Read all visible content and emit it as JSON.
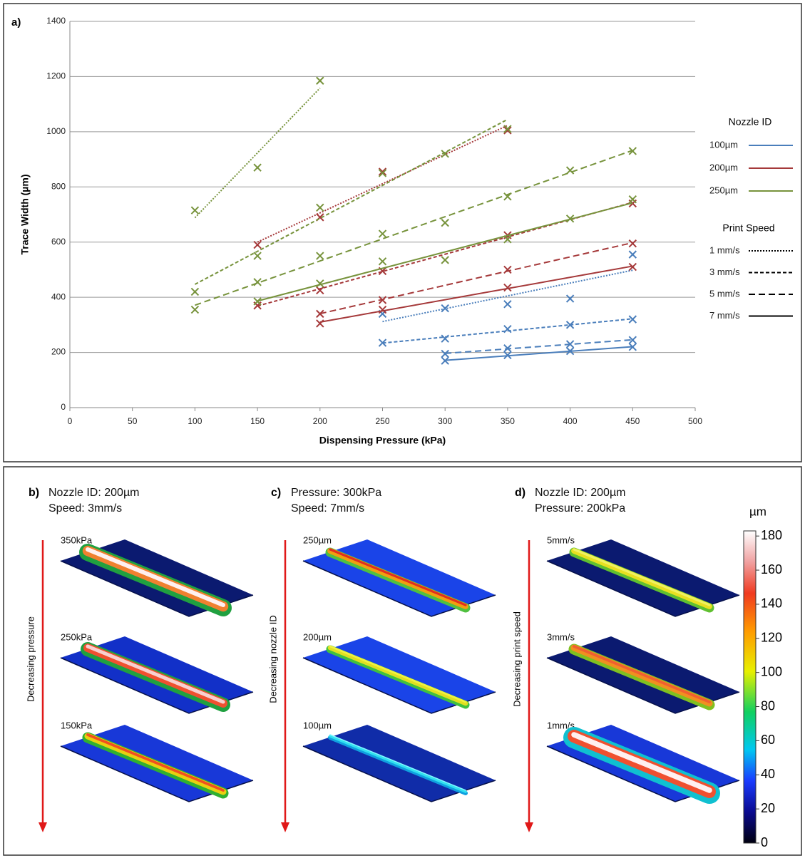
{
  "chart_data": {
    "type": "scatter",
    "panel_label": "a)",
    "x_label": "Dispensing Pressure (kPa)",
    "y_label": "Trace Width (µm)",
    "xlim": [
      0,
      500
    ],
    "xticks": [
      0,
      50,
      100,
      150,
      200,
      250,
      300,
      350,
      400,
      450,
      500
    ],
    "ylim": [
      0,
      1400
    ],
    "yticks": [
      0,
      200,
      400,
      600,
      800,
      1000,
      1200,
      1400
    ],
    "grid": true,
    "nozzle_legend_title": "Nozzle ID",
    "speed_legend_title": "Print Speed",
    "speeds": [
      {
        "name": "1 mm/s",
        "dash": "2,2"
      },
      {
        "name": "3 mm/s",
        "dash": "5,3"
      },
      {
        "name": "5 mm/s",
        "dash": "9,5"
      },
      {
        "name": "7 mm/s",
        "dash": "none"
      }
    ],
    "series": [
      {
        "name": "100µm",
        "color": "#4a7ebb",
        "lines": [
          {
            "x": [
              250,
              300,
              350,
              400,
              450
            ],
            "values": [
              340,
              360,
              375,
              395,
              555
            ]
          },
          {
            "x": [
              250,
              300,
              350,
              400,
              450
            ],
            "values": [
              235,
              250,
              285,
              300,
              320
            ]
          },
          {
            "x": [
              300,
              350,
              400,
              450
            ],
            "values": [
              195,
              215,
              230,
              245
            ]
          },
          {
            "x": [
              300,
              350,
              400,
              450
            ],
            "values": [
              170,
              190,
              205,
              220
            ]
          }
        ]
      },
      {
        "name": "200µm",
        "color": "#a5393a",
        "lines": [
          {
            "x": [
              150,
              200,
              250,
              350
            ],
            "values": [
              590,
              690,
              855,
              1005
            ]
          },
          {
            "x": [
              150,
              200,
              250,
              350,
              450
            ],
            "values": [
              370,
              425,
              495,
              625,
              740
            ]
          },
          {
            "x": [
              200,
              250,
              350,
              450
            ],
            "values": [
              340,
              390,
              500,
              595
            ]
          },
          {
            "x": [
              200,
              250,
              350,
              450
            ],
            "values": [
              305,
              355,
              435,
              510
            ]
          }
        ]
      },
      {
        "name": "250µm",
        "color": "#77933c",
        "lines": [
          {
            "x": [
              100,
              150,
              200
            ],
            "values": [
              715,
              870,
              1185
            ]
          },
          {
            "x": [
              100,
              150,
              200,
              250,
              300,
              350
            ],
            "values": [
              420,
              550,
              725,
              850,
              920,
              1010
            ]
          },
          {
            "x": [
              100,
              150,
              200,
              250,
              300,
              350,
              400,
              450
            ],
            "values": [
              355,
              455,
              550,
              630,
              670,
              765,
              860,
              930
            ]
          },
          {
            "x": [
              150,
              200,
              250,
              300,
              350,
              400,
              450
            ],
            "values": [
              385,
              450,
              530,
              535,
              610,
              685,
              755
            ]
          }
        ]
      }
    ]
  },
  "panels": [
    {
      "label": "b)",
      "lines": [
        "Nozzle ID: 200µm",
        "Speed: 3mm/s"
      ],
      "arrow": "Decreasing pressure",
      "rows": [
        "350kPa",
        "250kPa",
        "150kPa"
      ]
    },
    {
      "label": "c)",
      "lines": [
        "Pressure: 300kPa",
        "Speed: 7mm/s"
      ],
      "arrow": "Decreasing nozzle ID",
      "rows": [
        "250µm",
        "200µm",
        "100µm"
      ]
    },
    {
      "label": "d)",
      "lines": [
        "Nozzle ID: 200µm",
        "Pressure: 200kPa"
      ],
      "arrow": "Decreasing print speed",
      "rows": [
        "5mm/s",
        "3mm/s",
        "1mm/s"
      ]
    }
  ],
  "colorbar": {
    "unit": "µm",
    "lim": [
      0,
      183
    ],
    "ticks": [
      0,
      20,
      40,
      60,
      80,
      100,
      120,
      140,
      160,
      180
    ]
  }
}
